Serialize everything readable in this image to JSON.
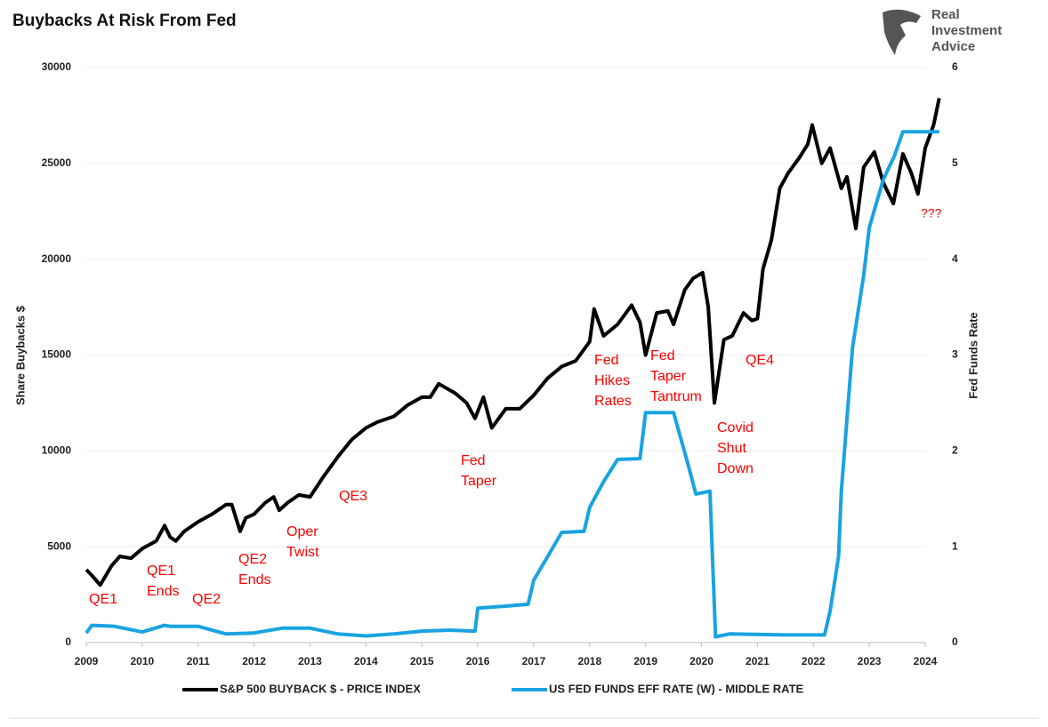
{
  "chart_data": {
    "type": "line",
    "title": "Buybacks At Risk From Fed",
    "logo": [
      "Real",
      "Investment",
      "Advice"
    ],
    "y_label": "Share Buybacks $",
    "y2_label": "Fed Funds Rate",
    "xlim": [
      2009,
      2024
    ],
    "xticks": [
      2009,
      2010,
      2011,
      2012,
      2013,
      2014,
      2015,
      2016,
      2017,
      2018,
      2019,
      2020,
      2021,
      2022,
      2023,
      2024
    ],
    "ylim": [
      0,
      30000
    ],
    "yticks": [
      0,
      5000,
      10000,
      15000,
      20000,
      25000,
      30000
    ],
    "y2lim": [
      0,
      6
    ],
    "y2ticks": [
      0,
      1,
      2,
      3,
      4,
      5,
      6
    ],
    "grid": true,
    "series": [
      {
        "name": "S&P 500 BUYBACK $ - PRICE INDEX",
        "color": "#000000",
        "x": [
          2009.0,
          2009.1,
          2009.25,
          2009.45,
          2009.6,
          2009.8,
          2010.0,
          2010.25,
          2010.4,
          2010.5,
          2010.6,
          2010.75,
          2011.0,
          2011.25,
          2011.5,
          2011.6,
          2011.75,
          2011.85,
          2012.0,
          2012.2,
          2012.35,
          2012.45,
          2012.6,
          2012.8,
          2013.0,
          2013.25,
          2013.5,
          2013.75,
          2014.0,
          2014.2,
          2014.5,
          2014.75,
          2015.0,
          2015.15,
          2015.3,
          2015.6,
          2015.8,
          2015.95,
          2016.1,
          2016.25,
          2016.5,
          2016.75,
          2017.0,
          2017.25,
          2017.5,
          2017.75,
          2018.0,
          2018.08,
          2018.25,
          2018.5,
          2018.75,
          2018.9,
          2019.0,
          2019.2,
          2019.4,
          2019.5,
          2019.7,
          2019.85,
          2020.02,
          2020.12,
          2020.23,
          2020.4,
          2020.55,
          2020.75,
          2020.9,
          2021.0,
          2021.1,
          2021.25,
          2021.4,
          2021.55,
          2021.75,
          2021.9,
          2021.98,
          2022.15,
          2022.3,
          2022.5,
          2022.6,
          2022.76,
          2022.9,
          2023.09,
          2023.25,
          2023.43,
          2023.6,
          2023.75,
          2023.87,
          2024.0,
          2024.15,
          2024.25
        ],
        "values": [
          3800,
          3500,
          3000,
          4000,
          4500,
          4400,
          4900,
          5300,
          6100,
          5500,
          5300,
          5800,
          6300,
          6700,
          7200,
          7200,
          5800,
          6500,
          6700,
          7300,
          7600,
          6900,
          7300,
          7700,
          7600,
          8700,
          9700,
          10600,
          11200,
          11500,
          11800,
          12400,
          12800,
          12800,
          13500,
          13000,
          12500,
          11700,
          12800,
          11200,
          12200,
          12200,
          12900,
          13800,
          14400,
          14700,
          15700,
          17400,
          16000,
          16600,
          17600,
          16700,
          15000,
          17200,
          17300,
          16600,
          18400,
          19000,
          19300,
          17500,
          12500,
          15800,
          16000,
          17200,
          16800,
          16900,
          19500,
          21000,
          23700,
          24500,
          25300,
          26000,
          27000,
          25000,
          25800,
          23700,
          24300,
          21600,
          24800,
          25600,
          24000,
          22900,
          25500,
          24500,
          23400,
          25800,
          27000,
          28400
        ]
      },
      {
        "name": "US FED FUNDS EFF RATE (W) - MIDDLE RATE",
        "color": "#1aa3e0",
        "axis": "y2",
        "x": [
          2009.0,
          2009.1,
          2009.5,
          2010.0,
          2010.4,
          2010.5,
          2011.0,
          2011.5,
          2012.0,
          2012.5,
          2013.0,
          2013.5,
          2014.0,
          2014.5,
          2015.0,
          2015.5,
          2015.95,
          2016.0,
          2016.5,
          2016.9,
          2017.0,
          2017.25,
          2017.5,
          2017.9,
          2018.0,
          2018.25,
          2018.5,
          2018.9,
          2019.0,
          2019.5,
          2019.75,
          2019.9,
          2020.15,
          2020.25,
          2020.5,
          2021.5,
          2022.2,
          2022.3,
          2022.45,
          2022.5,
          2022.7,
          2022.9,
          2023.0,
          2023.25,
          2023.45,
          2023.6,
          2024.25
        ],
        "values": [
          0.1,
          0.18,
          0.17,
          0.11,
          0.18,
          0.17,
          0.17,
          0.09,
          0.1,
          0.15,
          0.15,
          0.09,
          0.07,
          0.09,
          0.12,
          0.13,
          0.12,
          0.36,
          0.38,
          0.4,
          0.65,
          0.9,
          1.15,
          1.16,
          1.41,
          1.68,
          1.91,
          1.92,
          2.4,
          2.4,
          1.88,
          1.55,
          1.58,
          0.06,
          0.09,
          0.08,
          0.08,
          0.33,
          0.9,
          1.58,
          3.08,
          3.83,
          4.33,
          4.83,
          5.08,
          5.33,
          5.33
        ]
      }
    ],
    "annotations": [
      [
        "QE1"
      ],
      [
        "QE1",
        "Ends"
      ],
      [
        "QE2"
      ],
      [
        "QE2",
        "Ends"
      ],
      [
        "Oper",
        "Twist"
      ],
      [
        "QE3"
      ],
      [
        "Fed",
        "Taper"
      ],
      [
        "Fed",
        "Hikes",
        "Rates"
      ],
      [
        "Fed",
        "Taper",
        "Tantrum"
      ],
      [
        "Covid",
        "Shut",
        "Down"
      ],
      [
        "QE4"
      ],
      [
        "???"
      ]
    ]
  }
}
